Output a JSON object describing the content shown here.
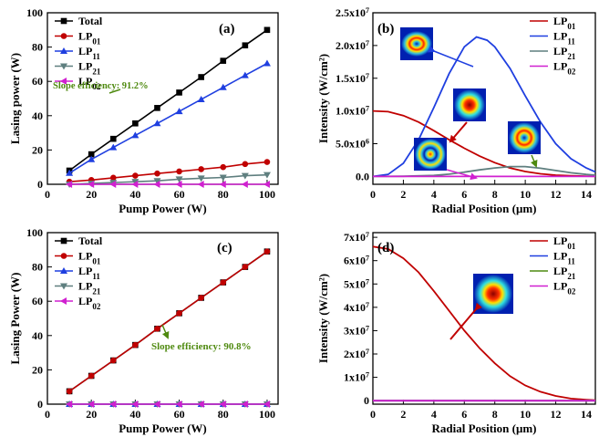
{
  "chart_data": [
    {
      "panel": "(a)",
      "type": "line",
      "xlabel": "Pump Power (W)",
      "ylabel": "Lasing power (W)",
      "xlim": [
        0,
        105
      ],
      "ylim": [
        0,
        100
      ],
      "xticks": [
        0,
        20,
        40,
        60,
        80,
        100
      ],
      "yticks": [
        0,
        20,
        40,
        60,
        80,
        100
      ],
      "x": [
        10,
        20,
        30,
        40,
        50,
        60,
        70,
        80,
        90,
        100
      ],
      "legend_position": "top-left",
      "series": [
        {
          "name": "Total",
          "sub": "",
          "color": "#000000",
          "marker": "square",
          "values": [
            8,
            17.5,
            26.5,
            35.5,
            44.5,
            53.5,
            62.5,
            72,
            81,
            90
          ]
        },
        {
          "name": "LP",
          "sub": "01",
          "color": "#c00000",
          "marker": "circle",
          "values": [
            1.5,
            2.5,
            3.8,
            5.0,
            6.3,
            7.5,
            8.8,
            10.0,
            11.8,
            13.0
          ]
        },
        {
          "name": "LP",
          "sub": "11",
          "color": "#1f3fe0",
          "marker": "triangle-up",
          "values": [
            6.5,
            14.5,
            21.5,
            28.5,
            35.5,
            42.5,
            49.5,
            56.5,
            63.5,
            70.5
          ]
        },
        {
          "name": "LP",
          "sub": "21",
          "color": "#5f7f7f",
          "marker": "triangle-down",
          "values": [
            0.0,
            0.5,
            1.0,
            1.5,
            2.0,
            3.0,
            3.5,
            4.0,
            5.0,
            5.5
          ]
        },
        {
          "name": "LP",
          "sub": "02",
          "color": "#d020d0",
          "marker": "triangle-left",
          "values": [
            0,
            0,
            0,
            0,
            0,
            0,
            0,
            0,
            0,
            0
          ]
        }
      ],
      "annotation": "Slope efficiency: 91.2%"
    },
    {
      "panel": "(b)",
      "type": "line",
      "xlabel": "Radial Position (μm)",
      "ylabel": "Intensity (W/cm²)",
      "xlim": [
        0,
        14.6
      ],
      "ylim": [
        -1200000,
        25000000
      ],
      "xticks": [
        0,
        2,
        4,
        6,
        8,
        10,
        12,
        14
      ],
      "yticks": [
        0,
        5000000,
        10000000,
        15000000,
        20000000,
        25000000
      ],
      "ytick_labels": [
        {
          "m": "0.0",
          "e": ""
        },
        {
          "m": "5.0x10",
          "e": "6"
        },
        {
          "m": "1.0x10",
          "e": "7"
        },
        {
          "m": "1.5x10",
          "e": "7"
        },
        {
          "m": "2.0x10",
          "e": "7"
        },
        {
          "m": "2.5x10",
          "e": "7"
        }
      ],
      "legend_position": "top-right",
      "series": [
        {
          "name": "LP",
          "sub": "01",
          "color": "#c00000",
          "x": [
            0,
            1,
            2,
            3,
            4,
            5,
            6,
            7,
            8,
            9,
            10,
            11,
            12,
            13,
            14,
            14.6
          ],
          "values": [
            10000000,
            9900000,
            9300000,
            8300000,
            7000000,
            5600000,
            4300000,
            3100000,
            2100000,
            1300000,
            750000,
            400000,
            200000,
            90000,
            40000,
            20000
          ]
        },
        {
          "name": "LP",
          "sub": "11",
          "color": "#1f3fe0",
          "x": [
            0,
            1,
            2,
            3,
            4,
            5,
            6,
            6.8,
            7.5,
            8,
            9,
            10,
            11,
            12,
            13,
            14,
            14.6
          ],
          "values": [
            0,
            300000,
            2000000,
            5600000,
            10500000,
            15700000,
            19800000,
            21300000,
            20800000,
            19800000,
            16500000,
            12300000,
            8300000,
            5000000,
            2700000,
            1300000,
            700000
          ]
        },
        {
          "name": "LP",
          "sub": "21",
          "color": "#5f7f7f",
          "x": [
            0,
            2,
            4,
            5,
            6,
            7,
            8,
            9,
            10,
            11,
            12,
            13,
            14,
            14.6
          ],
          "values": [
            0,
            20000,
            150000,
            350000,
            650000,
            1000000,
            1300000,
            1500000,
            1500000,
            1250000,
            900000,
            550000,
            300000,
            200000
          ]
        },
        {
          "name": "LP",
          "sub": "02",
          "color": "#d020d0",
          "x": [
            0,
            2,
            4,
            6,
            8,
            10,
            12,
            14,
            14.6
          ],
          "values": [
            0,
            0,
            0,
            0,
            0,
            0,
            0,
            0,
            0
          ]
        }
      ]
    },
    {
      "panel": "(c)",
      "type": "line",
      "xlabel": "Pump Power (W)",
      "ylabel": "Lasing Power (W)",
      "xlim": [
        0,
        105
      ],
      "ylim": [
        0,
        100
      ],
      "xticks": [
        0,
        20,
        40,
        60,
        80,
        100
      ],
      "yticks": [
        0,
        20,
        40,
        60,
        80,
        100
      ],
      "x": [
        10,
        20,
        30,
        40,
        50,
        60,
        70,
        80,
        90,
        100
      ],
      "legend_position": "top-left",
      "series": [
        {
          "name": "Total",
          "sub": "",
          "color": "#000000",
          "marker": "square",
          "values": [
            7.5,
            16.5,
            25.5,
            34.5,
            44,
            53,
            62,
            71,
            80,
            89
          ]
        },
        {
          "name": "LP",
          "sub": "01",
          "color": "#c00000",
          "marker": "circle",
          "values": [
            7.5,
            16.5,
            25.5,
            34.5,
            44,
            53,
            62,
            71,
            80,
            89
          ]
        },
        {
          "name": "LP",
          "sub": "11",
          "color": "#1f3fe0",
          "marker": "triangle-up",
          "values": [
            0,
            0,
            0,
            0,
            0,
            0,
            0,
            0,
            0,
            0
          ]
        },
        {
          "name": "LP",
          "sub": "21",
          "color": "#5f7f7f",
          "marker": "triangle-down",
          "values": [
            0,
            0,
            0,
            0,
            0,
            0,
            0,
            0,
            0,
            0
          ]
        },
        {
          "name": "LP",
          "sub": "02",
          "color": "#d020d0",
          "marker": "triangle-left",
          "values": [
            0,
            0,
            0,
            0,
            0,
            0,
            0,
            0,
            0,
            0
          ]
        }
      ],
      "annotation": "Slope efficiency: 90.8%"
    },
    {
      "panel": "(d)",
      "type": "line",
      "xlabel": "Radial Position (μm)",
      "ylabel": "Intensity (W/cm²)",
      "xlim": [
        0,
        14.6
      ],
      "ylim": [
        -1500000,
        72000000
      ],
      "xticks": [
        0,
        2,
        4,
        6,
        8,
        10,
        12,
        14
      ],
      "yticks": [
        0,
        10000000,
        20000000,
        30000000,
        40000000,
        50000000,
        60000000,
        70000000
      ],
      "ytick_labels": [
        {
          "m": "0",
          "e": ""
        },
        {
          "m": "1x10",
          "e": "7"
        },
        {
          "m": "2x10",
          "e": "7"
        },
        {
          "m": "3x10",
          "e": "7"
        },
        {
          "m": "4x10",
          "e": "7"
        },
        {
          "m": "5x10",
          "e": "7"
        },
        {
          "m": "6x10",
          "e": "7"
        },
        {
          "m": "7x10",
          "e": "7"
        }
      ],
      "legend_position": "top-right",
      "series": [
        {
          "name": "LP",
          "sub": "01",
          "color": "#c00000",
          "x": [
            0,
            1,
            2,
            3,
            4,
            5,
            6,
            7,
            8,
            9,
            10,
            11,
            12,
            13,
            14,
            14.6
          ],
          "values": [
            66000000,
            65000000,
            61000000,
            55000000,
            47000000,
            38500000,
            30000000,
            22500000,
            16000000,
            10500000,
            6500000,
            3800000,
            2000000,
            900000,
            400000,
            200000
          ]
        },
        {
          "name": "LP",
          "sub": "11",
          "color": "#1f3fe0",
          "x": [
            0,
            14.6
          ],
          "values": [
            0,
            0
          ]
        },
        {
          "name": "LP",
          "sub": "21",
          "color": "#4f8a10",
          "x": [
            0,
            14.6
          ],
          "values": [
            0,
            0
          ]
        },
        {
          "name": "LP",
          "sub": "02",
          "color": "#d020d0",
          "x": [
            0,
            14.6
          ],
          "values": [
            0,
            0
          ]
        }
      ]
    }
  ]
}
